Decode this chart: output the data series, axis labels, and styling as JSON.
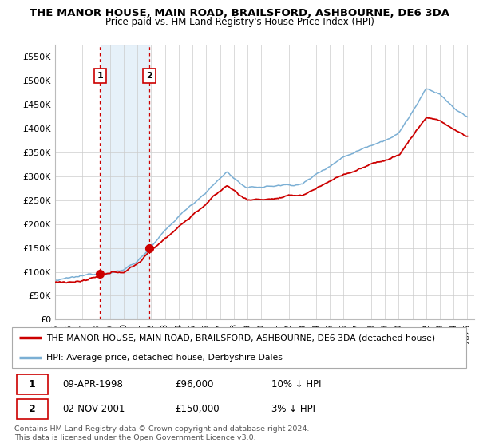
{
  "title": "THE MANOR HOUSE, MAIN ROAD, BRAILSFORD, ASHBOURNE, DE6 3DA",
  "subtitle": "Price paid vs. HM Land Registry's House Price Index (HPI)",
  "ylabel_ticks": [
    "£0",
    "£50K",
    "£100K",
    "£150K",
    "£200K",
    "£250K",
    "£300K",
    "£350K",
    "£400K",
    "£450K",
    "£500K",
    "£550K"
  ],
  "ytick_values": [
    0,
    50000,
    100000,
    150000,
    200000,
    250000,
    300000,
    350000,
    400000,
    450000,
    500000,
    550000
  ],
  "ylim": [
    0,
    575000
  ],
  "xlim_start": 1995.0,
  "xlim_end": 2025.5,
  "sale1_x": 1998.27,
  "sale1_y": 96000,
  "sale2_x": 2001.84,
  "sale2_y": 150000,
  "sale1_label": "1",
  "sale2_label": "2",
  "legend_line1": "THE MANOR HOUSE, MAIN ROAD, BRAILSFORD, ASHBOURNE, DE6 3DA (detached house)",
  "legend_line2": "HPI: Average price, detached house, Derbyshire Dales",
  "table_row1": [
    "1",
    "09-APR-1998",
    "£96,000",
    "10% ↓ HPI"
  ],
  "table_row2": [
    "2",
    "02-NOV-2001",
    "£150,000",
    "3% ↓ HPI"
  ],
  "footer": "Contains HM Land Registry data © Crown copyright and database right 2024.\nThis data is licensed under the Open Government Licence v3.0.",
  "red_color": "#cc0000",
  "blue_color": "#7bafd4",
  "shade_color": "#d6e8f5",
  "xtick_years": [
    1995,
    1996,
    1997,
    1998,
    1999,
    2000,
    2001,
    2002,
    2003,
    2004,
    2005,
    2006,
    2007,
    2008,
    2009,
    2010,
    2011,
    2012,
    2013,
    2014,
    2015,
    2016,
    2017,
    2018,
    2019,
    2020,
    2021,
    2022,
    2023,
    2024,
    2025
  ],
  "background_color": "#ffffff",
  "grid_color": "#cccccc"
}
